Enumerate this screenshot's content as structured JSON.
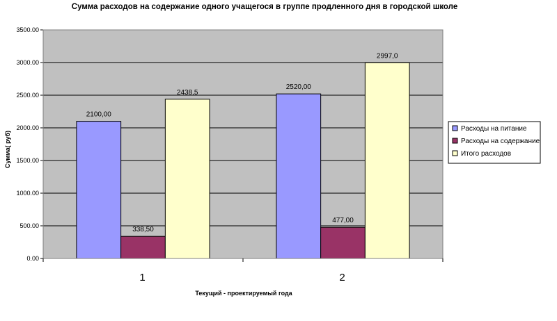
{
  "chart_data": {
    "type": "bar",
    "title": "Сумма расходов на содержание одного учащегося в группе продленного дня в городской школе",
    "xlabel": "Текущий - проектируемый года",
    "ylabel": "Сумма( руб)",
    "categories": [
      "1",
      "2"
    ],
    "ylim": [
      0,
      3500
    ],
    "yticks": [
      "0.00",
      "500.00",
      "1000.00",
      "1500.00",
      "2000.00",
      "2500.00",
      "3000.00",
      "3500.00"
    ],
    "grid": true,
    "legend_position": "right",
    "plot_background": "#c0c0c0",
    "series": [
      {
        "name": "Расходы на питание",
        "values": [
          2100,
          2520
        ],
        "labels": [
          "2100,00",
          "2520,00"
        ],
        "color": "#9999ff"
      },
      {
        "name": "Расходы на содержание",
        "values": [
          338.5,
          477
        ],
        "labels": [
          "338,50",
          "477,00"
        ],
        "color": "#993366"
      },
      {
        "name": "Итого расходов",
        "values": [
          2438.5,
          2997
        ],
        "labels": [
          "2438,5",
          "2997,0"
        ],
        "color": "#ffffcc"
      }
    ]
  }
}
